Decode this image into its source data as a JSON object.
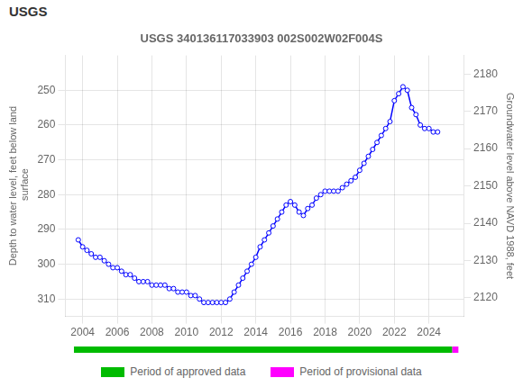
{
  "chart_data": {
    "type": "line",
    "title": "USGS 340136117033903 002S002W02F004S",
    "annotations": [
      "USGS"
    ],
    "ylabel": "Depth to water level, feet below land\n surface",
    "y2label": "Groundwater level above NAVD 1988, feet",
    "xlim": [
      2003.0,
      2026.0
    ],
    "xticks": [
      2004,
      2006,
      2008,
      2010,
      2012,
      2014,
      2016,
      2018,
      2020,
      2022,
      2024
    ],
    "ylim": [
      315,
      240
    ],
    "yticks": [
      250,
      260,
      270,
      280,
      290,
      300,
      310
    ],
    "y2lim": [
      2115,
      2185
    ],
    "y2ticks": [
      2120,
      2130,
      2140,
      2150,
      2160,
      2170,
      2180
    ],
    "grid": true,
    "legend": "bottom",
    "x": [
      2003.75,
      2004.0,
      2004.25,
      2004.5,
      2004.75,
      2005.0,
      2005.25,
      2005.5,
      2005.75,
      2006.0,
      2006.25,
      2006.5,
      2006.75,
      2007.0,
      2007.25,
      2007.5,
      2007.75,
      2008.0,
      2008.25,
      2008.5,
      2008.75,
      2009.0,
      2009.25,
      2009.5,
      2009.75,
      2010.0,
      2010.25,
      2010.5,
      2010.75,
      2011.0,
      2011.25,
      2011.5,
      2011.75,
      2012.0,
      2012.25,
      2012.5,
      2012.75,
      2013.0,
      2013.25,
      2013.5,
      2013.75,
      2014.0,
      2014.25,
      2014.5,
      2014.75,
      2015.0,
      2015.25,
      2015.5,
      2015.75,
      2016.0,
      2016.25,
      2016.5,
      2016.75,
      2017.0,
      2017.25,
      2017.5,
      2017.75,
      2018.0,
      2018.25,
      2018.5,
      2018.75,
      2019.0,
      2019.25,
      2019.5,
      2019.75,
      2020.0,
      2020.25,
      2020.5,
      2020.75,
      2021.0,
      2021.25,
      2021.5,
      2021.75,
      2022.0,
      2022.25,
      2022.5,
      2022.75,
      2023.0,
      2023.25,
      2023.5,
      2023.75,
      2024.0,
      2024.25,
      2024.5
    ],
    "series": [
      {
        "color": "#0000ff",
        "marker": "circle",
        "line_style": "solid",
        "values": [
          293,
          295,
          296,
          297,
          298,
          298,
          299,
          300,
          301,
          301,
          302,
          303,
          303,
          304,
          305,
          305,
          305,
          306,
          306,
          306,
          306,
          307,
          307,
          308,
          308,
          308,
          309,
          309,
          310,
          311,
          311,
          311,
          311,
          311,
          311,
          310,
          308,
          306,
          304,
          302,
          300,
          298,
          295,
          293,
          291,
          289,
          287,
          285,
          283,
          282,
          283,
          285,
          286,
          284,
          283,
          281,
          280,
          279,
          279,
          279,
          279,
          278,
          277,
          276,
          275,
          273,
          271,
          269,
          267,
          265,
          263,
          261,
          259,
          253,
          251,
          249,
          250,
          255,
          257,
          260,
          261,
          261,
          262,
          262
        ]
      }
    ],
    "periods": [
      {
        "name": "Period of approved data",
        "color": "#00bb00",
        "start": 2003.5,
        "end": 2025.35
      },
      {
        "name": "Period of provisional data",
        "color": "#ff00ff",
        "start": 2025.35,
        "end": 2025.7
      }
    ]
  }
}
